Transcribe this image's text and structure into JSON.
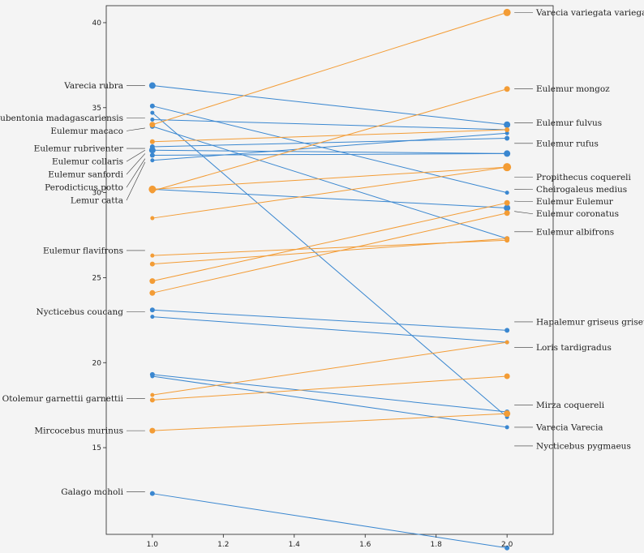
{
  "chart_data": {
    "type": "slope",
    "title": "",
    "xlabel": "",
    "ylabel": "",
    "xlim": [
      0.87,
      2.13
    ],
    "ylim": [
      9.9,
      41.0
    ],
    "grid": false,
    "x_ticks": [
      {
        "value": 1.0,
        "label": "1.0"
      },
      {
        "value": 1.2,
        "label": "1.2"
      },
      {
        "value": 1.4,
        "label": "1.4"
      },
      {
        "value": 1.6,
        "label": "1.6"
      },
      {
        "value": 1.8,
        "label": "1.8"
      },
      {
        "value": 2.0,
        "label": "2.0"
      }
    ],
    "y_ticks": [
      {
        "value": 15,
        "label": "15"
      },
      {
        "value": 20,
        "label": "20"
      },
      {
        "value": 25,
        "label": "25"
      },
      {
        "value": 30,
        "label": "30"
      },
      {
        "value": 35,
        "label": "35"
      },
      {
        "value": 40,
        "label": "40"
      }
    ],
    "colors": {
      "decrease": "#3a87d0",
      "increase": "#f39c35"
    },
    "segments": [
      {
        "y1": 36.3,
        "y2": 34.0,
        "dir": "decrease",
        "s1": 7,
        "s2": 7
      },
      {
        "y1": 35.1,
        "y2": 30.0,
        "dir": "decrease",
        "s1": 5,
        "s2": 4
      },
      {
        "y1": 34.7,
        "y2": 16.8,
        "dir": "decrease",
        "s1": 4,
        "s2": 4
      },
      {
        "y1": 34.3,
        "y2": 33.7,
        "dir": "decrease",
        "s1": 4,
        "s2": 4
      },
      {
        "y1": 33.9,
        "y2": 27.3,
        "dir": "decrease",
        "s1": 5,
        "s2": 5
      },
      {
        "y1": 32.7,
        "y2": 33.2,
        "dir": "decrease",
        "s1": 5,
        "s2": 5
      },
      {
        "y1": 32.5,
        "y2": 32.3,
        "dir": "decrease",
        "s1": 7,
        "s2": 7
      },
      {
        "y1": 31.9,
        "y2": 33.5,
        "dir": "decrease",
        "s1": 4,
        "s2": 4
      },
      {
        "y1": 32.2,
        "y2": 32.3,
        "dir": "decrease",
        "s1": 5,
        "s2": 5
      },
      {
        "y1": 30.2,
        "y2": 29.1,
        "dir": "decrease",
        "s1": 7,
        "s2": 7
      },
      {
        "y1": 23.1,
        "y2": 21.9,
        "dir": "decrease",
        "s1": 5,
        "s2": 5
      },
      {
        "y1": 22.7,
        "y2": 21.2,
        "dir": "decrease",
        "s1": 4,
        "s2": 4
      },
      {
        "y1": 19.3,
        "y2": 17.1,
        "dir": "decrease",
        "s1": 5,
        "s2": 5
      },
      {
        "y1": 19.2,
        "y2": 16.2,
        "dir": "decrease",
        "s1": 4,
        "s2": 4
      },
      {
        "y1": 12.3,
        "y2": 9.1,
        "dir": "decrease",
        "s1": 5,
        "s2": 5
      },
      {
        "y1": 34.0,
        "y2": 40.6,
        "dir": "increase",
        "s1": 6,
        "s2": 8
      },
      {
        "y1": 33.0,
        "y2": 33.7,
        "dir": "increase",
        "s1": 5,
        "s2": 5
      },
      {
        "y1": 30.1,
        "y2": 36.1,
        "dir": "increase",
        "s1": 5,
        "s2": 6
      },
      {
        "y1": 30.2,
        "y2": 31.5,
        "dir": "increase",
        "s1": 8,
        "s2": 9
      },
      {
        "y1": 28.5,
        "y2": 31.5,
        "dir": "increase",
        "s1": 4,
        "s2": 5
      },
      {
        "y1": 26.3,
        "y2": 27.2,
        "dir": "increase",
        "s1": 4,
        "s2": 5
      },
      {
        "y1": 25.8,
        "y2": 27.3,
        "dir": "increase",
        "s1": 5,
        "s2": 5
      },
      {
        "y1": 24.8,
        "y2": 29.4,
        "dir": "increase",
        "s1": 6,
        "s2": 6
      },
      {
        "y1": 24.1,
        "y2": 28.8,
        "dir": "increase",
        "s1": 6,
        "s2": 6
      },
      {
        "y1": 18.1,
        "y2": 21.2,
        "dir": "increase",
        "s1": 4,
        "s2": 4
      },
      {
        "y1": 17.8,
        "y2": 19.2,
        "dir": "increase",
        "s1": 5,
        "s2": 6
      },
      {
        "y1": 16.0,
        "y2": 17.0,
        "dir": "increase",
        "s1": 6,
        "s2": 7
      }
    ],
    "left_labels": [
      {
        "name": "Varecia rubra",
        "y": 36.3
      },
      {
        "name": "Daubentonia madagascariensis",
        "y": 34.4
      },
      {
        "name": "Eulemur macaco",
        "y": 33.8
      },
      {
        "name": "Eulemur rubriventer",
        "y": 32.6
      },
      {
        "name": "Eulemur sanfordi",
        "y": 32.3
      },
      {
        "name": "Eulemur collaris",
        "y": 32.5
      },
      {
        "name": "Perodicticus potto",
        "y": 32.0
      },
      {
        "name": "Lemur catta",
        "y": 31.8
      },
      {
        "name": "Eulemur flavifrons",
        "y": 26.6
      },
      {
        "name": "Nycticebus coucang",
        "y": 23.0
      },
      {
        "name": "Otolemur garnettii garnettii",
        "y": 17.9
      },
      {
        "name": "Mircocebus murinus",
        "y": 16.0
      },
      {
        "name": "Galago moholi",
        "y": 12.4
      }
    ],
    "right_labels": [
      {
        "name": "Varecia variegata variegata",
        "y": 40.6
      },
      {
        "name": "Eulemur mongoz",
        "y": 36.1
      },
      {
        "name": "Eulemur fulvus",
        "y": 34.1
      },
      {
        "name": "Eulemur rufus",
        "y": 32.9
      },
      {
        "name": "Propithecus coquereli",
        "y": 30.9
      },
      {
        "name": "Cheirogaleus medius",
        "y": 30.2
      },
      {
        "name": "Eulemur Eulemur",
        "y": 29.5
      },
      {
        "name": "Eulemur coronatus",
        "y": 28.9
      },
      {
        "name": "Eulemur albifrons",
        "y": 27.7
      },
      {
        "name": "Hapalemur griseus griseus",
        "y": 22.4
      },
      {
        "name": "Loris tardigradus",
        "y": 20.9
      },
      {
        "name": "Mirza coquereli",
        "y": 17.5
      },
      {
        "name": "Varecia Varecia",
        "y": 16.2
      },
      {
        "name": "Nycticebus pygmaeus",
        "y": 15.1
      }
    ]
  }
}
